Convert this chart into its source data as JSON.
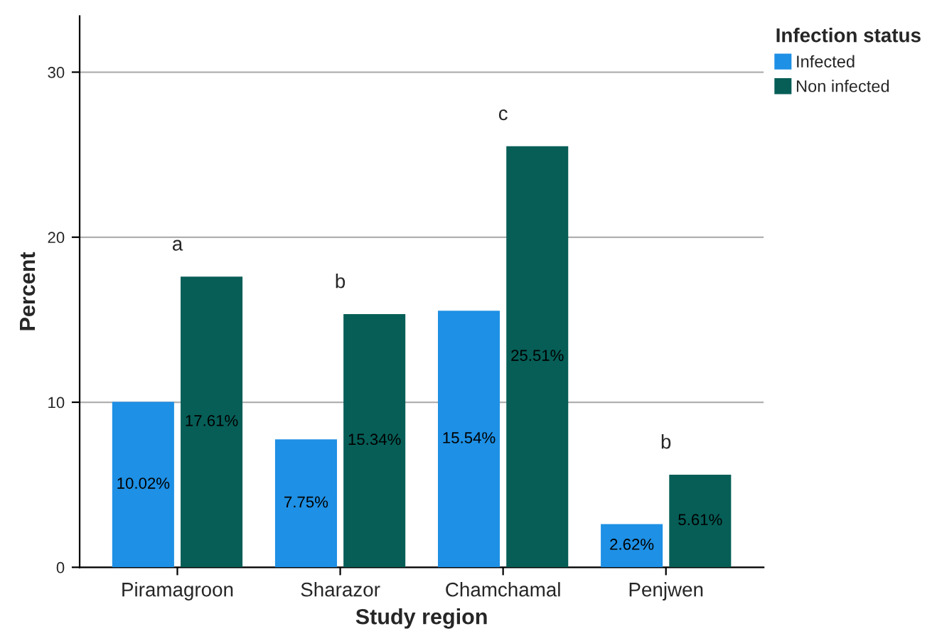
{
  "chart_data": {
    "type": "bar",
    "xlabel": "Study region",
    "ylabel": "Percent",
    "legend_title": "Infection status",
    "categories": [
      "Piramagroon",
      "Sharazor",
      "Chamchamal",
      "Penjwen"
    ],
    "series": [
      {
        "name": "Infected",
        "color": "#1e90e5",
        "values": [
          10.02,
          7.75,
          15.54,
          2.62
        ],
        "value_labels": [
          "10.02%",
          "7.75%",
          "15.54%",
          "2.62%"
        ]
      },
      {
        "name": "Non infected",
        "color": "#065e57",
        "values": [
          17.61,
          15.34,
          25.51,
          5.61
        ],
        "value_labels": [
          "17.61%",
          "15.34%",
          "25.51%",
          "5.61%"
        ]
      }
    ],
    "ylim": [
      0,
      33.4
    ],
    "yticks": [
      0,
      10,
      20,
      30
    ],
    "grid": "y",
    "legend": "top right",
    "annotations": [
      "a",
      "b",
      "c",
      "b"
    ]
  }
}
